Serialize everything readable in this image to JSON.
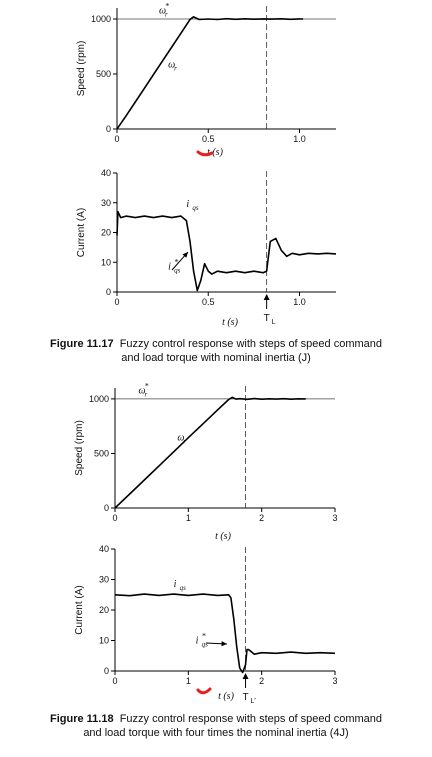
{
  "figure1": {
    "caption_label": "Figure 11.17",
    "caption_line1": "Fuzzy control response with steps of speed command",
    "caption_line2": "and load torque with nominal inertia (J)"
  },
  "figure2": {
    "caption_label": "Figure 11.18",
    "caption_line1": "Fuzzy control response with steps of speed command",
    "caption_line2": "and load torque with four times the nominal inertia (4J)"
  },
  "colors": {
    "curve": "#000000",
    "highlight": "#e8201a"
  },
  "chart_data": [
    {
      "id": "speed1",
      "type": "line",
      "title": "",
      "xlabel": "t (s)",
      "ylabel": "Speed (rpm)",
      "xlim": [
        0,
        1.2
      ],
      "ylim": [
        0,
        1100
      ],
      "xticks": [
        0,
        0.5,
        1.0
      ],
      "xtick_labels": [
        "0",
        "0.5",
        "1.0"
      ],
      "yticks": [
        0,
        500,
        1000
      ],
      "ytick_labels": [
        "0",
        "500",
        "1000"
      ],
      "reference_line": 1000,
      "marker_x": 0.82,
      "annotations": [
        {
          "text": "ω",
          "sub": "r",
          "sup": "*",
          "x": 0.23,
          "y": 1050
        },
        {
          "text": "ω",
          "sub": "r",
          "sup": "",
          "x": 0.28,
          "y": 560
        }
      ],
      "series": [
        {
          "x": [
            0,
            0.05,
            0.1,
            0.15,
            0.2,
            0.25,
            0.3,
            0.35,
            0.4,
            0.42,
            0.45,
            0.5,
            0.55,
            0.6,
            0.65,
            0.7,
            0.75,
            0.8,
            0.85,
            0.9,
            0.95,
            1.0,
            1.02
          ],
          "y": [
            0,
            120,
            245,
            370,
            495,
            620,
            745,
            870,
            995,
            1020,
            995,
            1000,
            995,
            1003,
            997,
            1002,
            998,
            1001,
            999,
            1002,
            997,
            1001,
            1000
          ]
        }
      ]
    },
    {
      "id": "current1",
      "type": "line",
      "title": "",
      "xlabel": "t (s)",
      "ylabel": "Current (A)",
      "xlim": [
        0,
        1.2
      ],
      "ylim": [
        0,
        40
      ],
      "xticks": [
        0,
        0.5,
        1.0
      ],
      "xtick_labels": [
        "0",
        "0.5",
        "1.0"
      ],
      "yticks": [
        0,
        10,
        20,
        30,
        40
      ],
      "ytick_labels": [
        "0",
        "10",
        "20",
        "30",
        "40"
      ],
      "marker_x": 0.82,
      "marker_label": "T",
      "marker_label_sub": "L",
      "annotations": [
        {
          "text": "i",
          "sub": "qs",
          "sup": "",
          "x": 0.38,
          "y": 28.5
        },
        {
          "text": "i",
          "sub": "qs",
          "sup": "*",
          "x": 0.28,
          "y": 7.5
        }
      ],
      "series": [
        {
          "x": [
            0,
            0.005,
            0.02,
            0.05,
            0.1,
            0.15,
            0.2,
            0.25,
            0.3,
            0.35,
            0.38,
            0.4,
            0.42,
            0.44,
            0.46,
            0.48,
            0.5,
            0.52,
            0.55,
            0.6,
            0.65,
            0.7,
            0.75,
            0.8,
            0.82,
            0.84,
            0.87,
            0.9,
            0.93,
            0.96,
            1.0,
            1.05,
            1.1,
            1.15,
            1.2
          ],
          "y": [
            19,
            27,
            25,
            25.5,
            25,
            25.5,
            25,
            25.5,
            25,
            25.5,
            24,
            17,
            7,
            0.5,
            4,
            9.5,
            7,
            6,
            7,
            6.5,
            7,
            6.5,
            7,
            6.5,
            7,
            17,
            18,
            14,
            12,
            13,
            12.5,
            13,
            12.8,
            13,
            12.8
          ]
        }
      ]
    },
    {
      "id": "speed2",
      "type": "line",
      "title": "",
      "xlabel": "t (s)",
      "ylabel": "Speed (rpm)",
      "xlim": [
        0,
        3
      ],
      "ylim": [
        0,
        1100
      ],
      "xticks": [
        0,
        1,
        2,
        3
      ],
      "xtick_labels": [
        "0",
        "1",
        "2",
        "3"
      ],
      "yticks": [
        0,
        500,
        1000
      ],
      "ytick_labels": [
        "0",
        "500",
        "1000"
      ],
      "reference_line": 1000,
      "marker_x": 1.78,
      "annotations": [
        {
          "text": "ω",
          "sub": "r",
          "sup": "*",
          "x": 0.32,
          "y": 1050
        },
        {
          "text": "ω",
          "sub": "r",
          "sup": "",
          "x": 0.85,
          "y": 620
        }
      ],
      "series": [
        {
          "x": [
            0,
            0.2,
            0.4,
            0.6,
            0.8,
            1.0,
            1.2,
            1.4,
            1.55,
            1.6,
            1.65,
            1.7,
            1.8,
            1.9,
            2.0,
            2.1,
            2.2,
            2.3,
            2.4,
            2.5,
            2.6
          ],
          "y": [
            0,
            128,
            257,
            386,
            515,
            644,
            772,
            900,
            995,
            1015,
            998,
            1002,
            996,
            1003,
            997,
            1001,
            998,
            1002,
            997,
            1001,
            1000
          ]
        }
      ]
    },
    {
      "id": "current2",
      "type": "line",
      "title": "",
      "xlabel": "t (s)",
      "ylabel": "Current (A)",
      "xlim": [
        0,
        3
      ],
      "ylim": [
        0,
        40
      ],
      "xticks": [
        0,
        1,
        2,
        3
      ],
      "xtick_labels": [
        "0",
        "1",
        "2",
        "3"
      ],
      "yticks": [
        0,
        10,
        20,
        30,
        40
      ],
      "ytick_labels": [
        "0",
        "10",
        "20",
        "30",
        "40"
      ],
      "marker_x": 1.78,
      "marker_label": "T",
      "marker_label_sub": "L′",
      "annotations": [
        {
          "text": "i",
          "sub": "qs",
          "sup": "",
          "x": 0.8,
          "y": 27.5
        },
        {
          "text": "i",
          "sub": "qs",
          "sup": "*",
          "x": 1.1,
          "y": 9
        }
      ],
      "series": [
        {
          "x": [
            0,
            0.2,
            0.4,
            0.6,
            0.8,
            1.0,
            1.2,
            1.4,
            1.55,
            1.58,
            1.62,
            1.66,
            1.7,
            1.74,
            1.78,
            1.8,
            1.82,
            1.85,
            1.9,
            2.0,
            2.2,
            2.4,
            2.6,
            2.8,
            3.0
          ],
          "y": [
            25,
            24.7,
            25.2,
            24.8,
            25.2,
            24.8,
            25.2,
            24.8,
            25,
            24,
            17,
            8,
            1,
            -0.5,
            2,
            7,
            7,
            6.5,
            5.5,
            6,
            5.8,
            6.2,
            5.8,
            6,
            5.8
          ]
        }
      ]
    }
  ]
}
